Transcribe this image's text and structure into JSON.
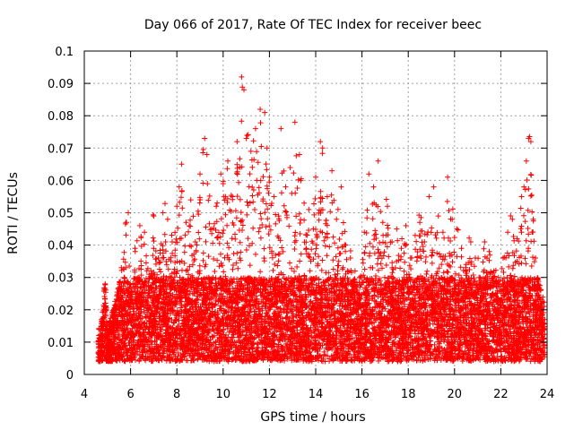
{
  "chart_data": {
    "type": "scatter",
    "title": "Day 066 of 2017, Rate Of TEC Index for receiver beec",
    "xlabel": "GPS time / hours",
    "ylabel": "ROTI / TECUs",
    "xlim": [
      4,
      24
    ],
    "ylim": [
      0,
      0.1
    ],
    "xticks": [
      4,
      6,
      8,
      10,
      12,
      14,
      16,
      18,
      20,
      22,
      24
    ],
    "xtick_labels": [
      "4",
      "6",
      "8",
      "10",
      "12",
      "14",
      "16",
      "18",
      "20",
      "22",
      "24"
    ],
    "yticks": [
      0,
      0.01,
      0.02,
      0.03,
      0.04,
      0.05,
      0.06,
      0.07,
      0.08,
      0.09,
      0.1
    ],
    "ytick_labels": [
      "0",
      "0.01",
      "0.02",
      "0.03",
      "0.04",
      "0.05",
      "0.06",
      "0.07",
      "0.08",
      "0.09",
      "0.1"
    ],
    "grid": true,
    "marker": "+",
    "series_color": "#ff0000",
    "x_range_of_points": [
      4.6,
      23.9
    ],
    "series": [
      {
        "name": "ROTI",
        "points": [
          [
            4.7,
            0.011
          ],
          [
            4.8,
            0.016
          ],
          [
            4.9,
            0.028
          ],
          [
            5.0,
            0.009
          ],
          [
            5.1,
            0.013
          ],
          [
            5.3,
            0.018
          ],
          [
            5.5,
            0.024
          ],
          [
            5.6,
            0.033
          ],
          [
            5.8,
            0.047
          ],
          [
            5.9,
            0.05
          ],
          [
            6.0,
            0.022
          ],
          [
            6.2,
            0.038
          ],
          [
            6.4,
            0.046
          ],
          [
            6.6,
            0.044
          ],
          [
            6.8,
            0.031
          ],
          [
            7.0,
            0.049
          ],
          [
            7.2,
            0.036
          ],
          [
            7.4,
            0.05
          ],
          [
            7.6,
            0.048
          ],
          [
            7.8,
            0.041
          ],
          [
            8.0,
            0.052
          ],
          [
            8.1,
            0.058
          ],
          [
            8.2,
            0.065
          ],
          [
            8.4,
            0.047
          ],
          [
            8.6,
            0.054
          ],
          [
            8.8,
            0.041
          ],
          [
            9.0,
            0.062
          ],
          [
            9.2,
            0.073
          ],
          [
            9.3,
            0.068
          ],
          [
            9.5,
            0.045
          ],
          [
            9.7,
            0.052
          ],
          [
            9.9,
            0.062
          ],
          [
            10.0,
            0.059
          ],
          [
            10.2,
            0.066
          ],
          [
            10.4,
            0.055
          ],
          [
            10.6,
            0.072
          ],
          [
            10.8,
            0.092
          ],
          [
            10.9,
            0.088
          ],
          [
            11.0,
            0.073
          ],
          [
            11.2,
            0.069
          ],
          [
            11.4,
            0.076
          ],
          [
            11.6,
            0.082
          ],
          [
            11.8,
            0.081
          ],
          [
            11.9,
            0.07
          ],
          [
            12.0,
            0.061
          ],
          [
            12.2,
            0.055
          ],
          [
            12.4,
            0.049
          ],
          [
            12.5,
            0.076
          ],
          [
            12.7,
            0.058
          ],
          [
            12.9,
            0.064
          ],
          [
            13.1,
            0.078
          ],
          [
            13.3,
            0.068
          ],
          [
            13.5,
            0.053
          ],
          [
            13.7,
            0.051
          ],
          [
            13.9,
            0.045
          ],
          [
            14.0,
            0.061
          ],
          [
            14.2,
            0.072
          ],
          [
            14.3,
            0.07
          ],
          [
            14.5,
            0.055
          ],
          [
            14.7,
            0.063
          ],
          [
            14.9,
            0.048
          ],
          [
            15.1,
            0.058
          ],
          [
            15.3,
            0.04
          ],
          [
            15.5,
            0.036
          ],
          [
            15.7,
            0.032
          ],
          [
            15.9,
            0.03
          ],
          [
            16.1,
            0.044
          ],
          [
            16.3,
            0.062
          ],
          [
            16.5,
            0.058
          ],
          [
            16.7,
            0.066
          ],
          [
            16.9,
            0.047
          ],
          [
            17.1,
            0.052
          ],
          [
            17.3,
            0.041
          ],
          [
            17.5,
            0.045
          ],
          [
            17.7,
            0.039
          ],
          [
            17.9,
            0.046
          ],
          [
            18.1,
            0.036
          ],
          [
            18.3,
            0.043
          ],
          [
            18.5,
            0.047
          ],
          [
            18.7,
            0.041
          ],
          [
            18.9,
            0.055
          ],
          [
            19.1,
            0.058
          ],
          [
            19.3,
            0.049
          ],
          [
            19.5,
            0.044
          ],
          [
            19.7,
            0.061
          ],
          [
            19.9,
            0.048
          ],
          [
            20.1,
            0.045
          ],
          [
            20.3,
            0.039
          ],
          [
            20.5,
            0.034
          ],
          [
            20.7,
            0.041
          ],
          [
            20.9,
            0.036
          ],
          [
            21.1,
            0.03
          ],
          [
            21.3,
            0.041
          ],
          [
            21.5,
            0.038
          ],
          [
            21.7,
            0.032
          ],
          [
            21.9,
            0.03
          ],
          [
            22.1,
            0.036
          ],
          [
            22.3,
            0.044
          ],
          [
            22.5,
            0.048
          ],
          [
            22.7,
            0.042
          ],
          [
            22.9,
            0.055
          ],
          [
            23.0,
            0.058
          ],
          [
            23.1,
            0.066
          ],
          [
            23.2,
            0.073
          ],
          [
            23.3,
            0.072
          ],
          [
            23.4,
            0.048
          ],
          [
            23.5,
            0.036
          ],
          [
            23.6,
            0.026
          ],
          [
            23.8,
            0.021
          ],
          [
            23.9,
            0.017
          ]
        ]
      }
    ]
  }
}
